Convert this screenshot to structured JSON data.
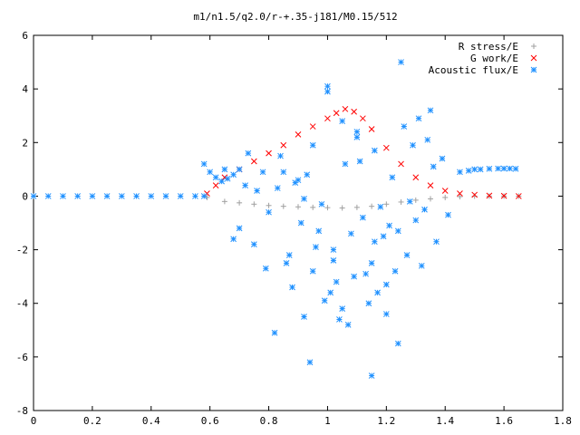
{
  "chart_data": {
    "type": "scatter",
    "title": "m1/n1.5/q2.0/r-+.35-j181/M0.15/512",
    "xlabel": "",
    "ylabel": "",
    "xlim": [
      0,
      1.8
    ],
    "ylim": [
      -8,
      6
    ],
    "x_ticks": [
      "0",
      "0.2",
      "0.4",
      "0.6",
      "0.8",
      "1",
      "1.2",
      "1.4",
      "1.6",
      "1.8"
    ],
    "y_ticks": [
      "6",
      "4",
      "2",
      "0",
      "-2",
      "-4",
      "-6",
      "-8"
    ],
    "grid": false,
    "legend_position": "top-right",
    "series": [
      {
        "name": "R stress/E",
        "marker": "+",
        "color": "#a0a0a0",
        "x": [
          0.59,
          0.65,
          0.7,
          0.75,
          0.8,
          0.85,
          0.9,
          0.95,
          1.0,
          1.05,
          1.1,
          1.15,
          1.2,
          1.25,
          1.3,
          1.35,
          1.4,
          1.45,
          1.5,
          1.55,
          1.6,
          1.65
        ],
        "y": [
          -0.05,
          -0.2,
          -0.25,
          -0.3,
          -0.35,
          -0.38,
          -0.4,
          -0.42,
          -0.43,
          -0.44,
          -0.42,
          -0.38,
          -0.3,
          -0.22,
          -0.15,
          -0.1,
          -0.05,
          -0.02,
          0.0,
          0.0,
          0.0,
          0.0
        ]
      },
      {
        "name": "G work/E",
        "marker": "x",
        "color": "#ff0000",
        "x": [
          0.59,
          0.62,
          0.65,
          0.7,
          0.75,
          0.8,
          0.85,
          0.9,
          0.95,
          1.0,
          1.03,
          1.06,
          1.09,
          1.12,
          1.15,
          1.2,
          1.25,
          1.3,
          1.35,
          1.4,
          1.45,
          1.5,
          1.55,
          1.6,
          1.65
        ],
        "y": [
          0.1,
          0.4,
          0.7,
          1.0,
          1.3,
          1.6,
          1.9,
          2.3,
          2.6,
          2.9,
          3.1,
          3.25,
          3.15,
          2.9,
          2.5,
          1.8,
          1.2,
          0.7,
          0.4,
          0.2,
          0.1,
          0.05,
          0.02,
          0.01,
          0.0
        ]
      },
      {
        "name": "Acoustic flux/E",
        "marker": "*",
        "color": "#1e90ff",
        "baseline_x": [
          0.0,
          0.05,
          0.1,
          0.15,
          0.2,
          0.25,
          0.3,
          0.35,
          0.4,
          0.45,
          0.5,
          0.55,
          0.58
        ],
        "baseline_y": [
          0.0,
          0.0,
          0.0,
          0.0,
          0.0,
          0.0,
          0.0,
          0.0,
          0.0,
          0.0,
          0.0,
          0.0,
          0.0
        ],
        "left_branch_x": [
          0.58,
          0.6,
          0.62,
          0.64,
          0.66,
          0.68,
          0.7
        ],
        "left_branch_y": [
          1.2,
          0.9,
          0.7,
          0.55,
          0.65,
          0.8,
          1.0
        ],
        "right_branch_x": [
          1.45,
          1.48,
          1.5,
          1.52,
          1.55,
          1.58,
          1.6,
          1.62,
          1.64
        ],
        "right_branch_y": [
          0.9,
          0.95,
          1.0,
          1.0,
          1.02,
          1.03,
          1.03,
          1.03,
          1.02
        ],
        "scatter_x": [
          0.65,
          0.7,
          0.72,
          0.75,
          0.78,
          0.8,
          0.82,
          0.84,
          0.86,
          0.88,
          0.9,
          0.92,
          0.94,
          0.95,
          0.97,
          0.99,
          1.0,
          1.02,
          1.04,
          1.05,
          1.07,
          1.09,
          1.1,
          1.12,
          1.14,
          1.15,
          1.17,
          1.19,
          1.2,
          1.22,
          1.24,
          1.25,
          1.27,
          1.29,
          1.3,
          1.32,
          1.34,
          1.35,
          1.37,
          1.39,
          0.83,
          0.91,
          0.98,
          1.06,
          1.13,
          1.21,
          1.26,
          1.33,
          0.68,
          0.76,
          0.87,
          0.93,
          1.01,
          1.08,
          1.16,
          1.23,
          1.28,
          0.79,
          0.89,
          0.96,
          1.03,
          1.11,
          1.18,
          1.31,
          1.36,
          1.41,
          0.73,
          0.85,
          1.0,
          1.15,
          1.24,
          0.95,
          1.05,
          1.1,
          1.16,
          1.2,
          0.92,
          1.02
        ],
        "scatter_y": [
          1.0,
          -1.2,
          0.4,
          -1.8,
          0.9,
          -0.6,
          -5.1,
          1.5,
          -2.5,
          -3.4,
          0.6,
          -4.5,
          -6.2,
          -2.8,
          -1.3,
          -3.9,
          4.1,
          -2.0,
          -4.6,
          2.8,
          -4.8,
          -3.0,
          2.4,
          -0.8,
          -4.0,
          -2.5,
          -3.6,
          -1.5,
          -4.4,
          0.7,
          -5.5,
          5.0,
          -2.2,
          1.9,
          -0.9,
          -2.6,
          2.1,
          3.2,
          -1.7,
          1.4,
          0.3,
          -1.0,
          -0.3,
          1.2,
          -2.9,
          -1.1,
          2.6,
          -0.5,
          -1.6,
          0.2,
          -2.2,
          0.8,
          -3.6,
          -1.4,
          1.7,
          -2.8,
          -0.2,
          -2.7,
          0.5,
          -1.9,
          -3.2,
          1.3,
          -0.4,
          2.9,
          1.1,
          -0.7,
          1.6,
          0.9,
          3.9,
          -6.7,
          -1.3,
          1.9,
          -4.2,
          2.2,
          -1.7,
          -3.3,
          -0.1,
          -2.4
        ]
      }
    ]
  }
}
